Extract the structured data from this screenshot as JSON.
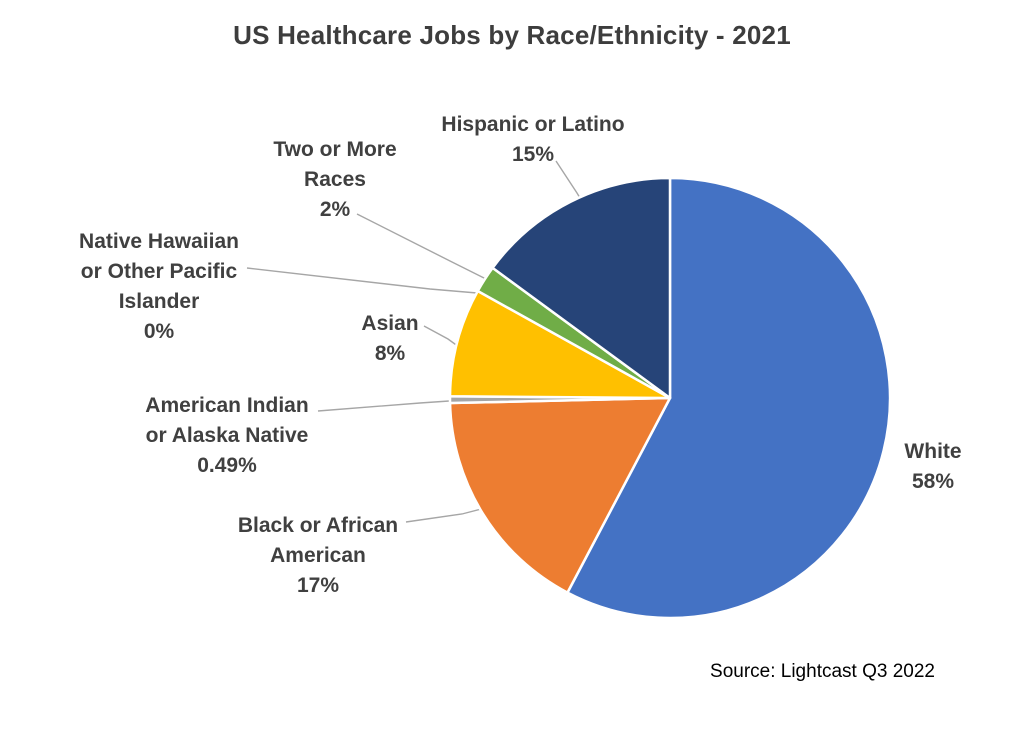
{
  "chart_data": {
    "type": "pie",
    "title": "US Healthcare Jobs by Race/Ethnicity - 2021",
    "source": "Source: Lightcast Q3 2022",
    "legend_position": "none",
    "start_angle_deg": 0,
    "direction": "clockwise",
    "stroke_color": "#ffffff",
    "leader_line_color": "#a6a6a6",
    "slices": [
      {
        "name": "White",
        "value": 58,
        "pct_label": "58%",
        "color": "#4472C4",
        "label_text": "White\n58%"
      },
      {
        "name": "Black or African American",
        "value": 17,
        "pct_label": "17%",
        "color": "#ED7D31",
        "label_text": "Black or African\nAmerican\n17%"
      },
      {
        "name": "American Indian or Alaska Native",
        "value": 0.49,
        "pct_label": "0.49%",
        "color": "#A5A5A5",
        "label_text": "American Indian\nor Alaska Native\n0.49%"
      },
      {
        "name": "Asian",
        "value": 8,
        "pct_label": "8%",
        "color": "#FFC000",
        "label_text": "Asian\n8%"
      },
      {
        "name": "Native Hawaiian or Other Pacific Islander",
        "value": 0,
        "pct_label": "0%",
        "color": "#5B9BD5",
        "label_text": "Native Hawaiian\nor Other Pacific\nIslander\n0%"
      },
      {
        "name": "Two or More Races",
        "value": 2,
        "pct_label": "2%",
        "color": "#70AD47",
        "label_text": "Two or More\nRaces\n2%"
      },
      {
        "name": "Hispanic or Latino",
        "value": 15,
        "pct_label": "15%",
        "color": "#264478",
        "label_text": "Hispanic or Latino\n15%"
      }
    ]
  }
}
